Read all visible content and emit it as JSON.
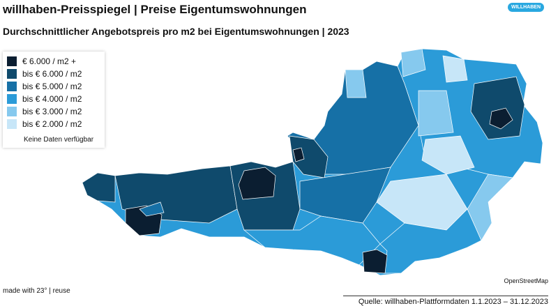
{
  "header": {
    "title": "willhaben-Preisspiegel | Preise Eigentumswohnungen",
    "subtitle": "Durchschnittlicher Angebotspreis pro m2 bei Eigentumswohnungen | 2023",
    "logo": "WILLHABEN"
  },
  "legend": {
    "items": [
      {
        "label": "€ 6.000 / m2 +",
        "color": "#0b1e31"
      },
      {
        "label": "bis € 6.000 / m2",
        "color": "#0f4a6c"
      },
      {
        "label": "bis € 5.000 / m2",
        "color": "#1670a6"
      },
      {
        "label": "bis € 4.000 / m2",
        "color": "#2b9bd8"
      },
      {
        "label": "bis € 3.000 / m2",
        "color": "#86c9ee"
      },
      {
        "label": "bis € 2.000 / m2",
        "color": "#c7e6f8"
      }
    ],
    "no_data": "Keine Daten verfügbar"
  },
  "map": {
    "attribution": "OpenStreetMap"
  },
  "footer": {
    "made_with": "made with 23° | reuse",
    "source": "Quelle: willhaben-Plattformdaten 1.1.2023 – 31.12.2023"
  }
}
